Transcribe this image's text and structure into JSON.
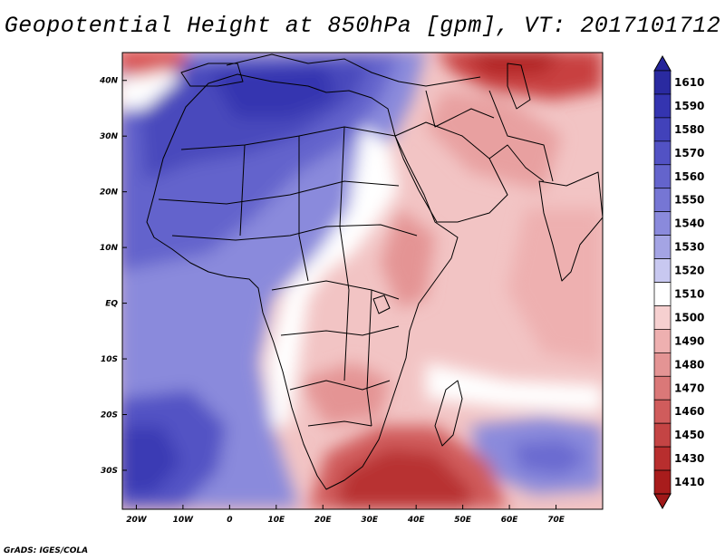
{
  "title": "Geopotential Height at 850hPa [gpm], VT: 2017101712",
  "footer": "GrADS: IGES/COLA",
  "map": {
    "lon_range": [
      -23,
      80
    ],
    "lat_range": [
      -37,
      45
    ],
    "lon_ticks": [
      {
        "lon": -20,
        "label": "20W"
      },
      {
        "lon": -10,
        "label": "10W"
      },
      {
        "lon": 0,
        "label": "0"
      },
      {
        "lon": 10,
        "label": "10E"
      },
      {
        "lon": 20,
        "label": "20E"
      },
      {
        "lon": 30,
        "label": "30E"
      },
      {
        "lon": 40,
        "label": "40E"
      },
      {
        "lon": 50,
        "label": "50E"
      },
      {
        "lon": 60,
        "label": "60E"
      },
      {
        "lon": 70,
        "label": "70E"
      }
    ],
    "lat_ticks": [
      {
        "lat": 40,
        "label": "40N"
      },
      {
        "lat": 30,
        "label": "30N"
      },
      {
        "lat": 20,
        "label": "20N"
      },
      {
        "lat": 10,
        "label": "10N"
      },
      {
        "lat": 0,
        "label": "EQ"
      },
      {
        "lat": -10,
        "label": "10S"
      },
      {
        "lat": -20,
        "label": "20S"
      },
      {
        "lat": -30,
        "label": "30S"
      }
    ]
  },
  "colorbar": {
    "levels": [
      {
        "label": "1610",
        "color": "#2a2aa0"
      },
      {
        "label": "1590",
        "color": "#3434b0"
      },
      {
        "label": "1580",
        "color": "#4242ba"
      },
      {
        "label": "1570",
        "color": "#5252c4"
      },
      {
        "label": "1560",
        "color": "#6464cc"
      },
      {
        "label": "1550",
        "color": "#7676d4"
      },
      {
        "label": "1540",
        "color": "#8a8adc"
      },
      {
        "label": "1530",
        "color": "#a4a4e4"
      },
      {
        "label": "1520",
        "color": "#c8c8f0"
      },
      {
        "label": "1510",
        "color": "#ffffff"
      },
      {
        "label": "1500",
        "color": "#f6d0d0"
      },
      {
        "label": "1490",
        "color": "#eeb0b0"
      },
      {
        "label": "1480",
        "color": "#e49494"
      },
      {
        "label": "1470",
        "color": "#da7878"
      },
      {
        "label": "1460",
        "color": "#d05c5c"
      },
      {
        "label": "1450",
        "color": "#c44444"
      },
      {
        "label": "1430",
        "color": "#b82e2e"
      },
      {
        "label": "1410",
        "color": "#a81c1c"
      }
    ],
    "top_arrow_color": "#24249a",
    "bottom_arrow_color": "#a01818"
  }
}
